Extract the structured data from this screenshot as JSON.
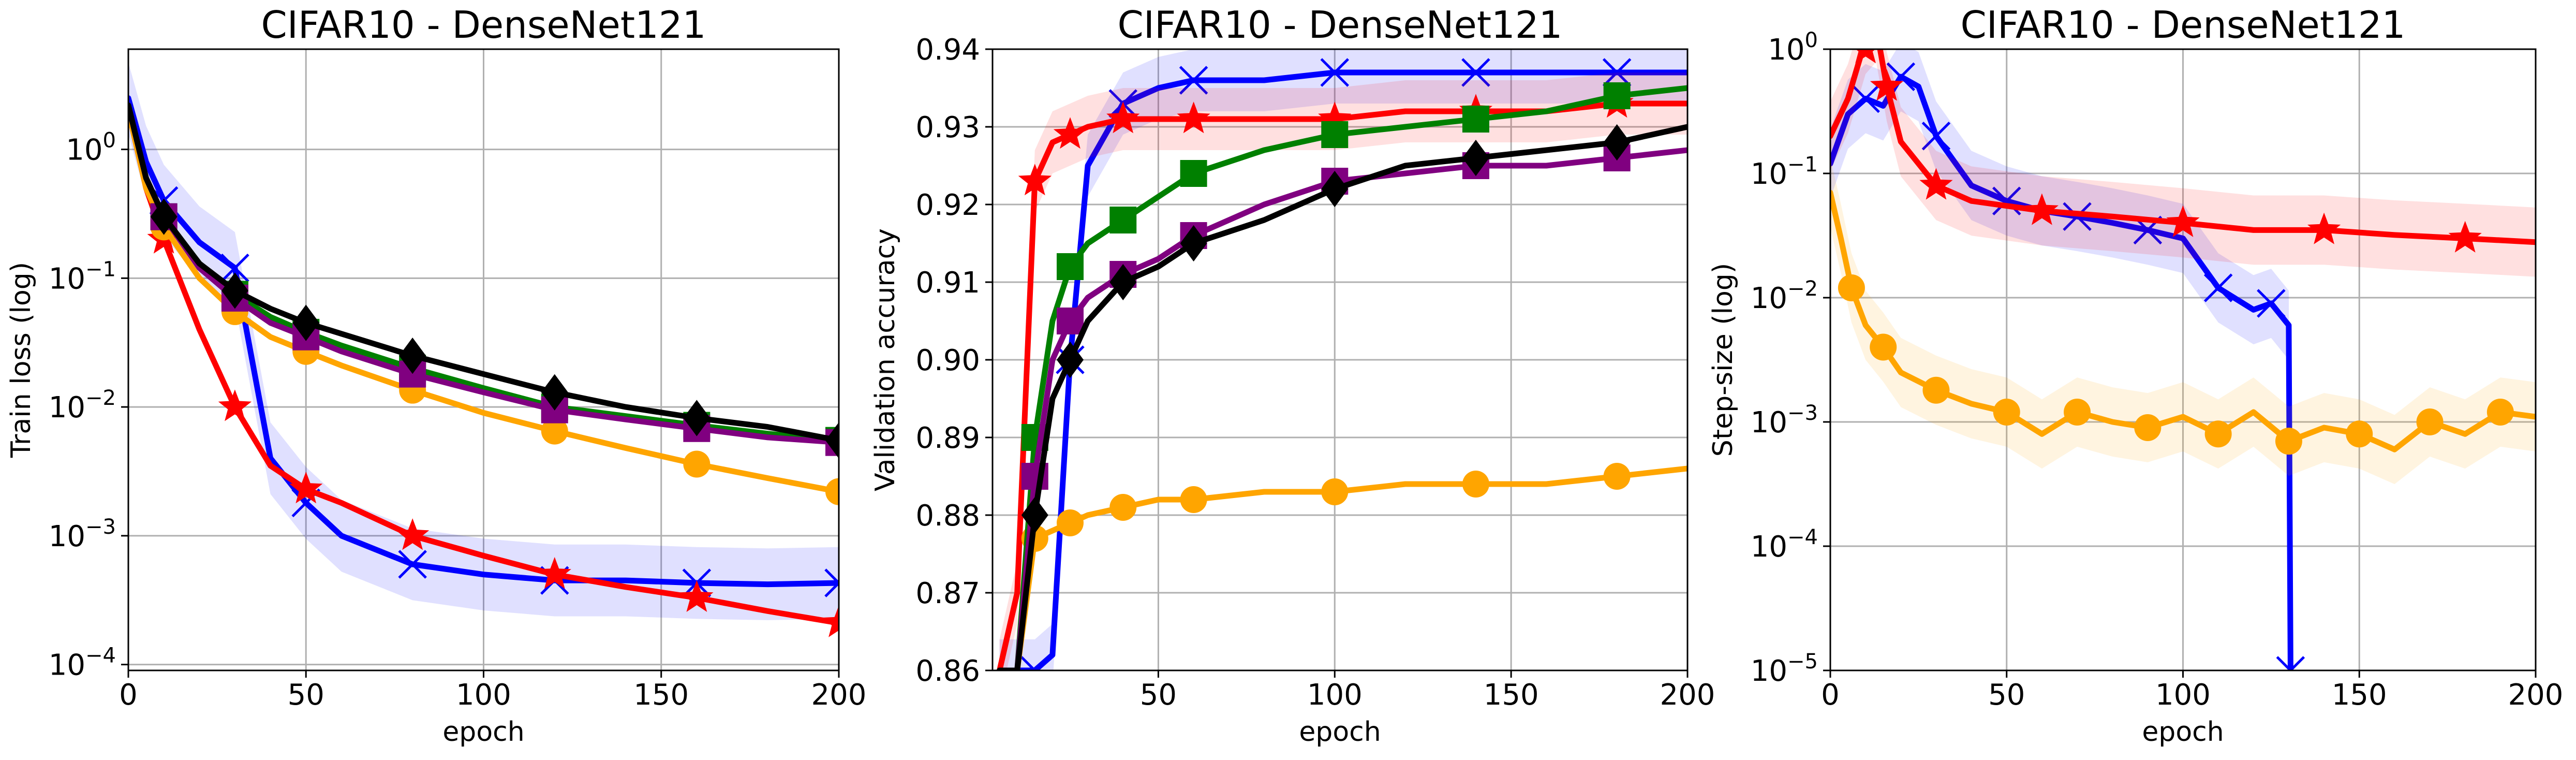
{
  "chart_data": [
    {
      "type": "line",
      "title": "CIFAR10 - DenseNet121",
      "xlabel": "epoch",
      "ylabel": "Train loss (log)",
      "yscale": "log",
      "xlim": [
        0,
        200
      ],
      "ylim": [
        9e-05,
        6
      ],
      "grid": true,
      "x_ticks": [
        "0",
        "50",
        "100",
        "150",
        "200"
      ],
      "y_ticks": [
        {
          "value": 1,
          "base": "10",
          "exp": "0"
        },
        {
          "value": 0.1,
          "base": "10",
          "exp": "−1"
        },
        {
          "value": 0.01,
          "base": "10",
          "exp": "−2"
        },
        {
          "value": 0.001,
          "base": "10",
          "exp": "−3"
        },
        {
          "value": 0.0001,
          "base": "10",
          "exp": "−4"
        }
      ],
      "x": [
        0,
        5,
        10,
        20,
        30,
        40,
        50,
        60,
        80,
        100,
        120,
        140,
        160,
        180,
        200
      ],
      "series": [
        {
          "color": "#0000ff",
          "marker": "x",
          "band": true,
          "values": [
            2.5,
            0.8,
            0.4,
            0.19,
            0.12,
            0.004,
            0.0018,
            0.001,
            0.0006,
            0.0005,
            0.00045,
            0.00045,
            0.00043,
            0.00042,
            0.00043
          ]
        },
        {
          "color": "#ff0000",
          "marker": "star",
          "band": false,
          "values": [
            2.0,
            0.5,
            0.2,
            0.04,
            0.01,
            0.0035,
            0.0023,
            0.0018,
            0.001,
            0.0007,
            0.0005,
            0.0004,
            0.00033,
            0.00026,
            0.00021
          ]
        },
        {
          "color": "#ffa500",
          "marker": "circle",
          "band": false,
          "values": [
            2.0,
            0.5,
            0.25,
            0.1,
            0.055,
            0.035,
            0.027,
            0.021,
            0.0135,
            0.009,
            0.0065,
            0.0048,
            0.0036,
            0.0028,
            0.0022
          ]
        },
        {
          "color": "#008000",
          "marker": "square",
          "band": false,
          "values": [
            2.2,
            0.6,
            0.3,
            0.13,
            0.075,
            0.05,
            0.038,
            0.03,
            0.02,
            0.014,
            0.01,
            0.0085,
            0.0072,
            0.0062,
            0.0055
          ]
        },
        {
          "color": "#800080",
          "marker": "square",
          "band": false,
          "values": [
            2.2,
            0.6,
            0.3,
            0.12,
            0.07,
            0.045,
            0.035,
            0.027,
            0.018,
            0.013,
            0.0095,
            0.008,
            0.0068,
            0.0058,
            0.0053
          ]
        },
        {
          "color": "#000000",
          "marker": "diamond",
          "band": false,
          "values": [
            2.2,
            0.6,
            0.3,
            0.13,
            0.08,
            0.058,
            0.045,
            0.037,
            0.025,
            0.018,
            0.013,
            0.01,
            0.0082,
            0.007,
            0.0055
          ]
        }
      ]
    },
    {
      "type": "line",
      "title": "CIFAR10 - DenseNet121",
      "xlabel": "epoch",
      "ylabel": "Validation accuracy",
      "yscale": "linear",
      "xlim": [
        3,
        200
      ],
      "ylim": [
        0.86,
        0.94
      ],
      "grid": true,
      "x_ticks": [
        "50",
        "100",
        "150",
        "200"
      ],
      "y_ticks": [
        "0.86",
        "0.87",
        "0.88",
        "0.89",
        "0.90",
        "0.91",
        "0.92",
        "0.93",
        "0.94"
      ],
      "x": [
        5,
        10,
        15,
        20,
        25,
        30,
        40,
        50,
        60,
        80,
        100,
        120,
        140,
        160,
        180,
        200
      ],
      "series": [
        {
          "color": "#0000ff",
          "marker": "x",
          "band": true,
          "values": [
            0.86,
            0.86,
            0.86,
            0.862,
            0.9,
            0.925,
            0.933,
            0.935,
            0.936,
            0.936,
            0.937,
            0.937,
            0.937,
            0.937,
            0.937,
            0.937
          ]
        },
        {
          "color": "#ff0000",
          "marker": "star",
          "band": true,
          "values": [
            0.86,
            0.87,
            0.923,
            0.928,
            0.929,
            0.93,
            0.931,
            0.931,
            0.931,
            0.931,
            0.931,
            0.932,
            0.932,
            0.932,
            0.933,
            0.933
          ]
        },
        {
          "color": "#ffa500",
          "marker": "circle",
          "band": false,
          "values": [
            0.86,
            0.86,
            0.877,
            0.878,
            0.879,
            0.88,
            0.881,
            0.882,
            0.882,
            0.883,
            0.883,
            0.884,
            0.884,
            0.884,
            0.885,
            0.886
          ]
        },
        {
          "color": "#008000",
          "marker": "square",
          "band": false,
          "values": [
            0.86,
            0.86,
            0.89,
            0.905,
            0.912,
            0.915,
            0.918,
            0.921,
            0.924,
            0.927,
            0.929,
            0.93,
            0.931,
            0.932,
            0.934,
            0.935
          ]
        },
        {
          "color": "#800080",
          "marker": "square",
          "band": false,
          "values": [
            0.86,
            0.86,
            0.885,
            0.9,
            0.905,
            0.908,
            0.911,
            0.913,
            0.916,
            0.92,
            0.923,
            0.924,
            0.925,
            0.925,
            0.926,
            0.927
          ]
        },
        {
          "color": "#000000",
          "marker": "diamond",
          "band": false,
          "values": [
            0.86,
            0.86,
            0.88,
            0.895,
            0.9,
            0.905,
            0.91,
            0.912,
            0.915,
            0.918,
            0.922,
            0.925,
            0.926,
            0.927,
            0.928,
            0.93
          ]
        }
      ]
    },
    {
      "type": "line",
      "title": "CIFAR10 - DenseNet121",
      "xlabel": "epoch",
      "ylabel": "Step-size (log)",
      "yscale": "log",
      "xlim": [
        0,
        200
      ],
      "ylim": [
        1e-05,
        1
      ],
      "grid": true,
      "x_ticks": [
        "0",
        "50",
        "100",
        "150",
        "200"
      ],
      "y_ticks": [
        {
          "value": 1,
          "base": "10",
          "exp": "0"
        },
        {
          "value": 0.1,
          "base": "10",
          "exp": "−1"
        },
        {
          "value": 0.01,
          "base": "10",
          "exp": "−2"
        },
        {
          "value": 0.001,
          "base": "10",
          "exp": "−3"
        },
        {
          "value": 0.0001,
          "base": "10",
          "exp": "−4"
        },
        {
          "value": 1e-05,
          "base": "10",
          "exp": "−5"
        }
      ],
      "series": [
        {
          "color": "#0000ff",
          "marker": "x",
          "band": true,
          "x": [
            0,
            5,
            10,
            15,
            20,
            25,
            30,
            40,
            50,
            60,
            70,
            80,
            90,
            100,
            110,
            120,
            125,
            130,
            130.5
          ],
          "values": [
            0.12,
            0.3,
            0.4,
            0.35,
            0.6,
            0.5,
            0.2,
            0.08,
            0.06,
            0.05,
            0.045,
            0.04,
            0.035,
            0.03,
            0.012,
            0.008,
            0.009,
            0.006,
            1e-05
          ]
        },
        {
          "color": "#ff0000",
          "marker": "star",
          "band": true,
          "x": [
            0,
            5,
            10,
            13,
            16,
            20,
            30,
            40,
            60,
            80,
            100,
            120,
            140,
            160,
            180,
            200
          ],
          "values": [
            0.2,
            0.4,
            1.2,
            1.5,
            0.5,
            0.18,
            0.08,
            0.06,
            0.05,
            0.045,
            0.04,
            0.035,
            0.035,
            0.032,
            0.03,
            0.028
          ]
        },
        {
          "color": "#ffa500",
          "marker": "circle",
          "band": true,
          "x": [
            0,
            3,
            6,
            10,
            15,
            20,
            30,
            40,
            50,
            60,
            70,
            80,
            90,
            100,
            110,
            120,
            130,
            140,
            150,
            160,
            170,
            180,
            190,
            200
          ],
          "values": [
            0.07,
            0.03,
            0.012,
            0.006,
            0.004,
            0.0025,
            0.0018,
            0.0014,
            0.0012,
            0.0008,
            0.0012,
            0.001,
            0.0009,
            0.0011,
            0.0008,
            0.0012,
            0.0007,
            0.0009,
            0.0008,
            0.0006,
            0.001,
            0.0008,
            0.0012,
            0.0011
          ]
        }
      ]
    }
  ]
}
